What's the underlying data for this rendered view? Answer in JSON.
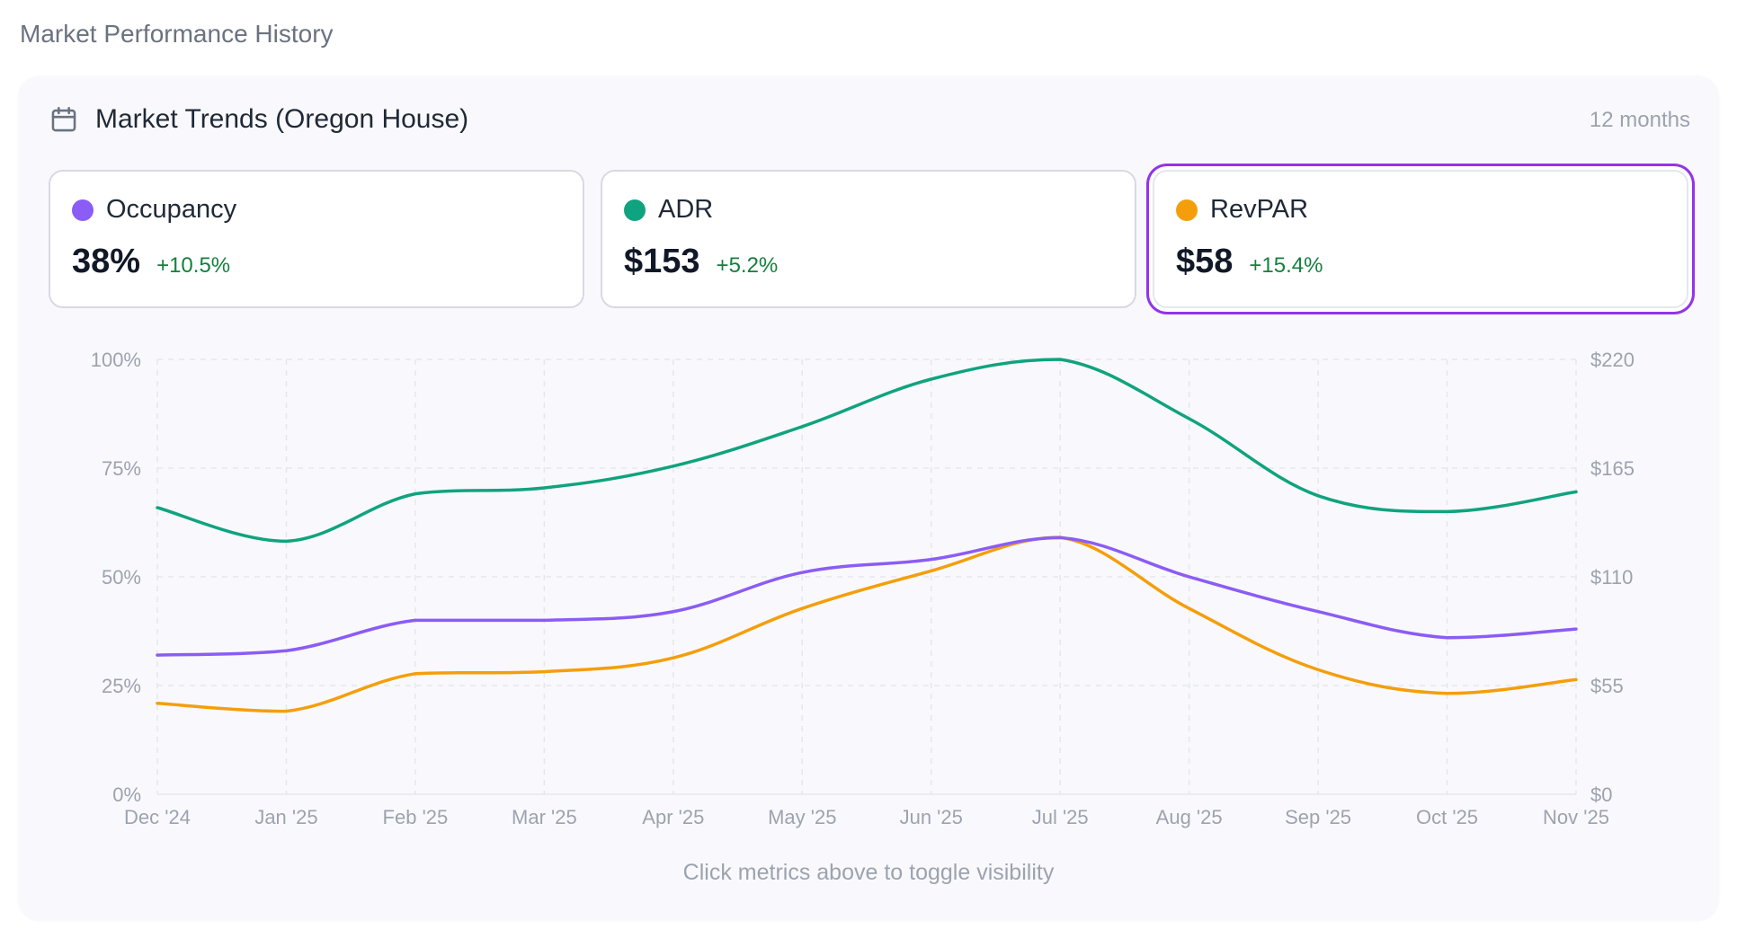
{
  "page": {
    "section_title": "Market Performance History"
  },
  "panel": {
    "title": "Market Trends (Oregon House)",
    "range_label": "12 months",
    "hint": "Click metrics above to toggle visibility"
  },
  "metrics": [
    {
      "label": "Occupancy",
      "value": "38%",
      "change": "+10.5%",
      "color": "#8b5cf6",
      "selected": false
    },
    {
      "label": "ADR",
      "value": "$153",
      "change": "+5.2%",
      "color": "#10a37f",
      "selected": false
    },
    {
      "label": "RevPAR",
      "value": "$58",
      "change": "+15.4%",
      "color": "#f59e0b",
      "selected": true
    }
  ],
  "colors": {
    "selected_border": "#9333ea",
    "change_positive": "#15803d",
    "grid": "#e5e7eb",
    "axis_text": "#9ca3af"
  },
  "chart_data": {
    "type": "line",
    "categories": [
      "Dec '24",
      "Jan '25",
      "Feb '25",
      "Mar '25",
      "Apr '25",
      "May '25",
      "Jun '25",
      "Jul '25",
      "Aug '25",
      "Sep '25",
      "Oct '25",
      "Nov '25"
    ],
    "left_axis": {
      "ticks": [
        "0%",
        "25%",
        "50%",
        "75%",
        "100%"
      ],
      "range": [
        0,
        100
      ]
    },
    "right_axis": {
      "ticks": [
        "$0",
        "$55",
        "$110",
        "$165",
        "$220"
      ],
      "range": [
        0,
        220
      ]
    },
    "grid": true,
    "series": [
      {
        "name": "Occupancy",
        "axis": "left",
        "color": "#8b5cf6",
        "values": [
          32,
          33,
          40,
          40,
          42,
          51,
          54,
          59,
          50,
          42,
          36,
          38
        ]
      },
      {
        "name": "ADR",
        "axis": "right",
        "color": "#10a37f",
        "values": [
          145,
          128,
          152,
          155,
          166,
          186,
          210,
          220,
          190,
          151,
          143,
          153
        ]
      },
      {
        "name": "RevPAR",
        "axis": "right",
        "color": "#f59e0b",
        "values": [
          46,
          42,
          61,
          62,
          69,
          94,
          113,
          130,
          94,
          63,
          51,
          58
        ]
      }
    ]
  }
}
